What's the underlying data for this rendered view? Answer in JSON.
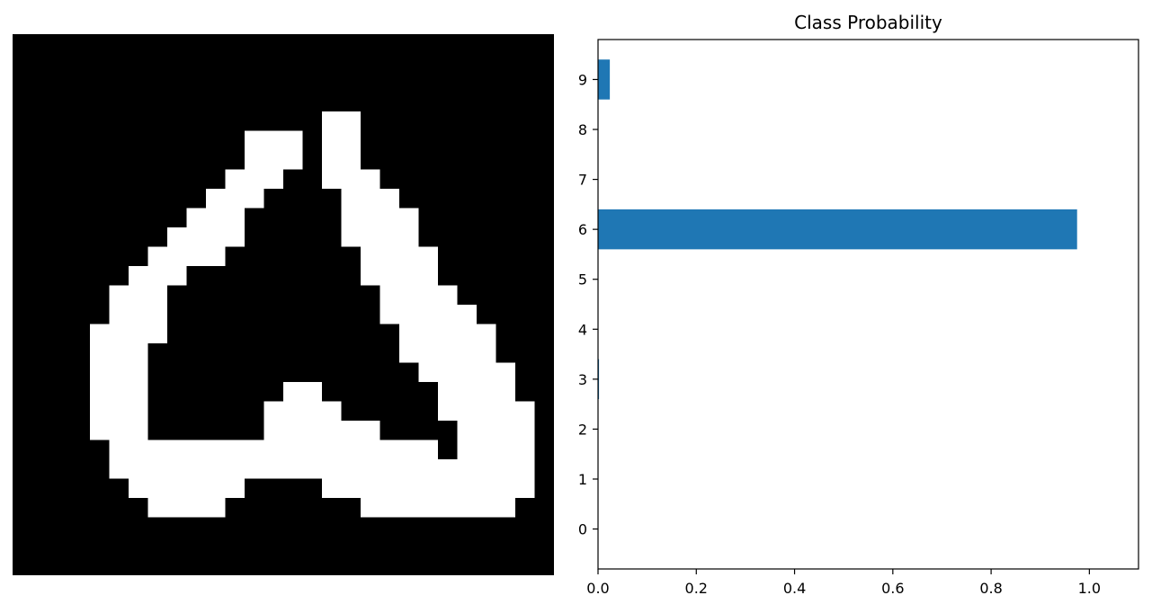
{
  "image_panel": {
    "grid_size": 28,
    "foreground_color": "#ffffff",
    "background_color": "#000000",
    "pixel_rows": [
      "",
      "",
      "",
      "",
      "16-17",
      "12-14,16-17",
      "12-14,16-17",
      "11-13,16-18",
      "10-12,17-19",
      "9-11,17-20",
      "8-11,17-20",
      "7-10,18-21",
      "6-8,18-21",
      "5-7,19-22",
      "5-7,19-23",
      "4-7,20-24",
      "4-6,20-24",
      "4-6,21-25",
      "4-6,14-15,22-25",
      "4-6,13-16,22-26",
      "4-6,13-18,23-26",
      "5-21,23-26",
      "5-26",
      "6-11,16-26",
      "7-10,18-25",
      "",
      "",
      ""
    ]
  },
  "chart_data": {
    "type": "bar",
    "orientation": "horizontal",
    "title": "Class Probability",
    "xlabel": "",
    "ylabel": "",
    "categories": [
      "0",
      "1",
      "2",
      "3",
      "4",
      "5",
      "6",
      "7",
      "8",
      "9"
    ],
    "values": [
      0.0,
      0.0,
      0.0,
      0.002,
      0.0,
      0.0,
      0.975,
      0.0,
      0.0,
      0.024
    ],
    "xlim": [
      0,
      1.1
    ],
    "xticks": [
      "0.0",
      "0.2",
      "0.4",
      "0.6",
      "0.8",
      "1.0"
    ],
    "bar_color": "#1f77b4",
    "grid": false,
    "legend": "none"
  }
}
